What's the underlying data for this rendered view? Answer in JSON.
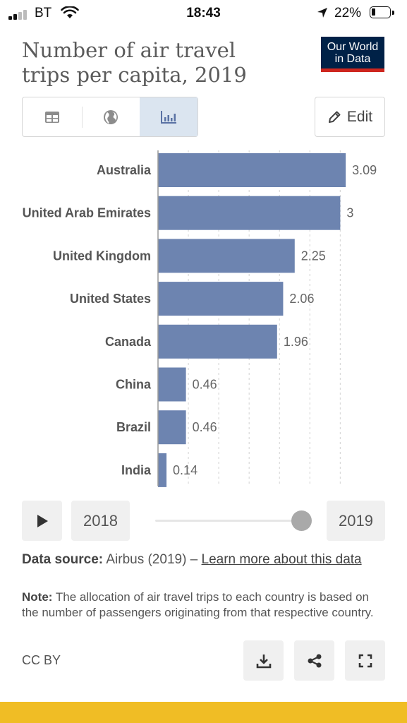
{
  "status_bar": {
    "carrier": "BT",
    "time": "18:43",
    "battery": "22%"
  },
  "header": {
    "title": "Number of air travel trips per capita, 2019",
    "logo_line1": "Our World",
    "logo_line2": "in Data"
  },
  "tabs": [
    {
      "icon": "table-icon",
      "active": false
    },
    {
      "icon": "globe-icon",
      "active": false
    },
    {
      "icon": "bar-chart-icon",
      "active": true
    }
  ],
  "edit_label": "Edit",
  "chart_data": {
    "type": "bar",
    "orientation": "horizontal",
    "title": "Number of air travel trips per capita, 2019",
    "categories": [
      "Australia",
      "United Arab Emirates",
      "United Kingdom",
      "United States",
      "Canada",
      "China",
      "Brazil",
      "India"
    ],
    "values": [
      3.09,
      3,
      2.25,
      2.06,
      1.96,
      0.46,
      0.46,
      0.14
    ],
    "value_labels": [
      "3.09",
      "3",
      "2.25",
      "2.06",
      "1.96",
      "0.46",
      "0.46",
      "0.14"
    ],
    "xlim": [
      0,
      3.1
    ],
    "grid": true,
    "bar_color": "#6d84b0"
  },
  "timeline": {
    "start_year": "2018",
    "end_year": "2019",
    "position": 1.0
  },
  "footer": {
    "source_label": "Data source:",
    "source_text": "Airbus (2019) –",
    "source_link": "Learn more about this data",
    "note_label": "Note:",
    "note_text": "The allocation of air travel trips to each country is based on the number of passengers originating from that respective country.",
    "license": "CC BY"
  },
  "colors": {
    "accent": "#f0bd25",
    "logo_bg": "#002147",
    "logo_stripe": "#ce261e",
    "active_tab": "#dbe5f0"
  }
}
